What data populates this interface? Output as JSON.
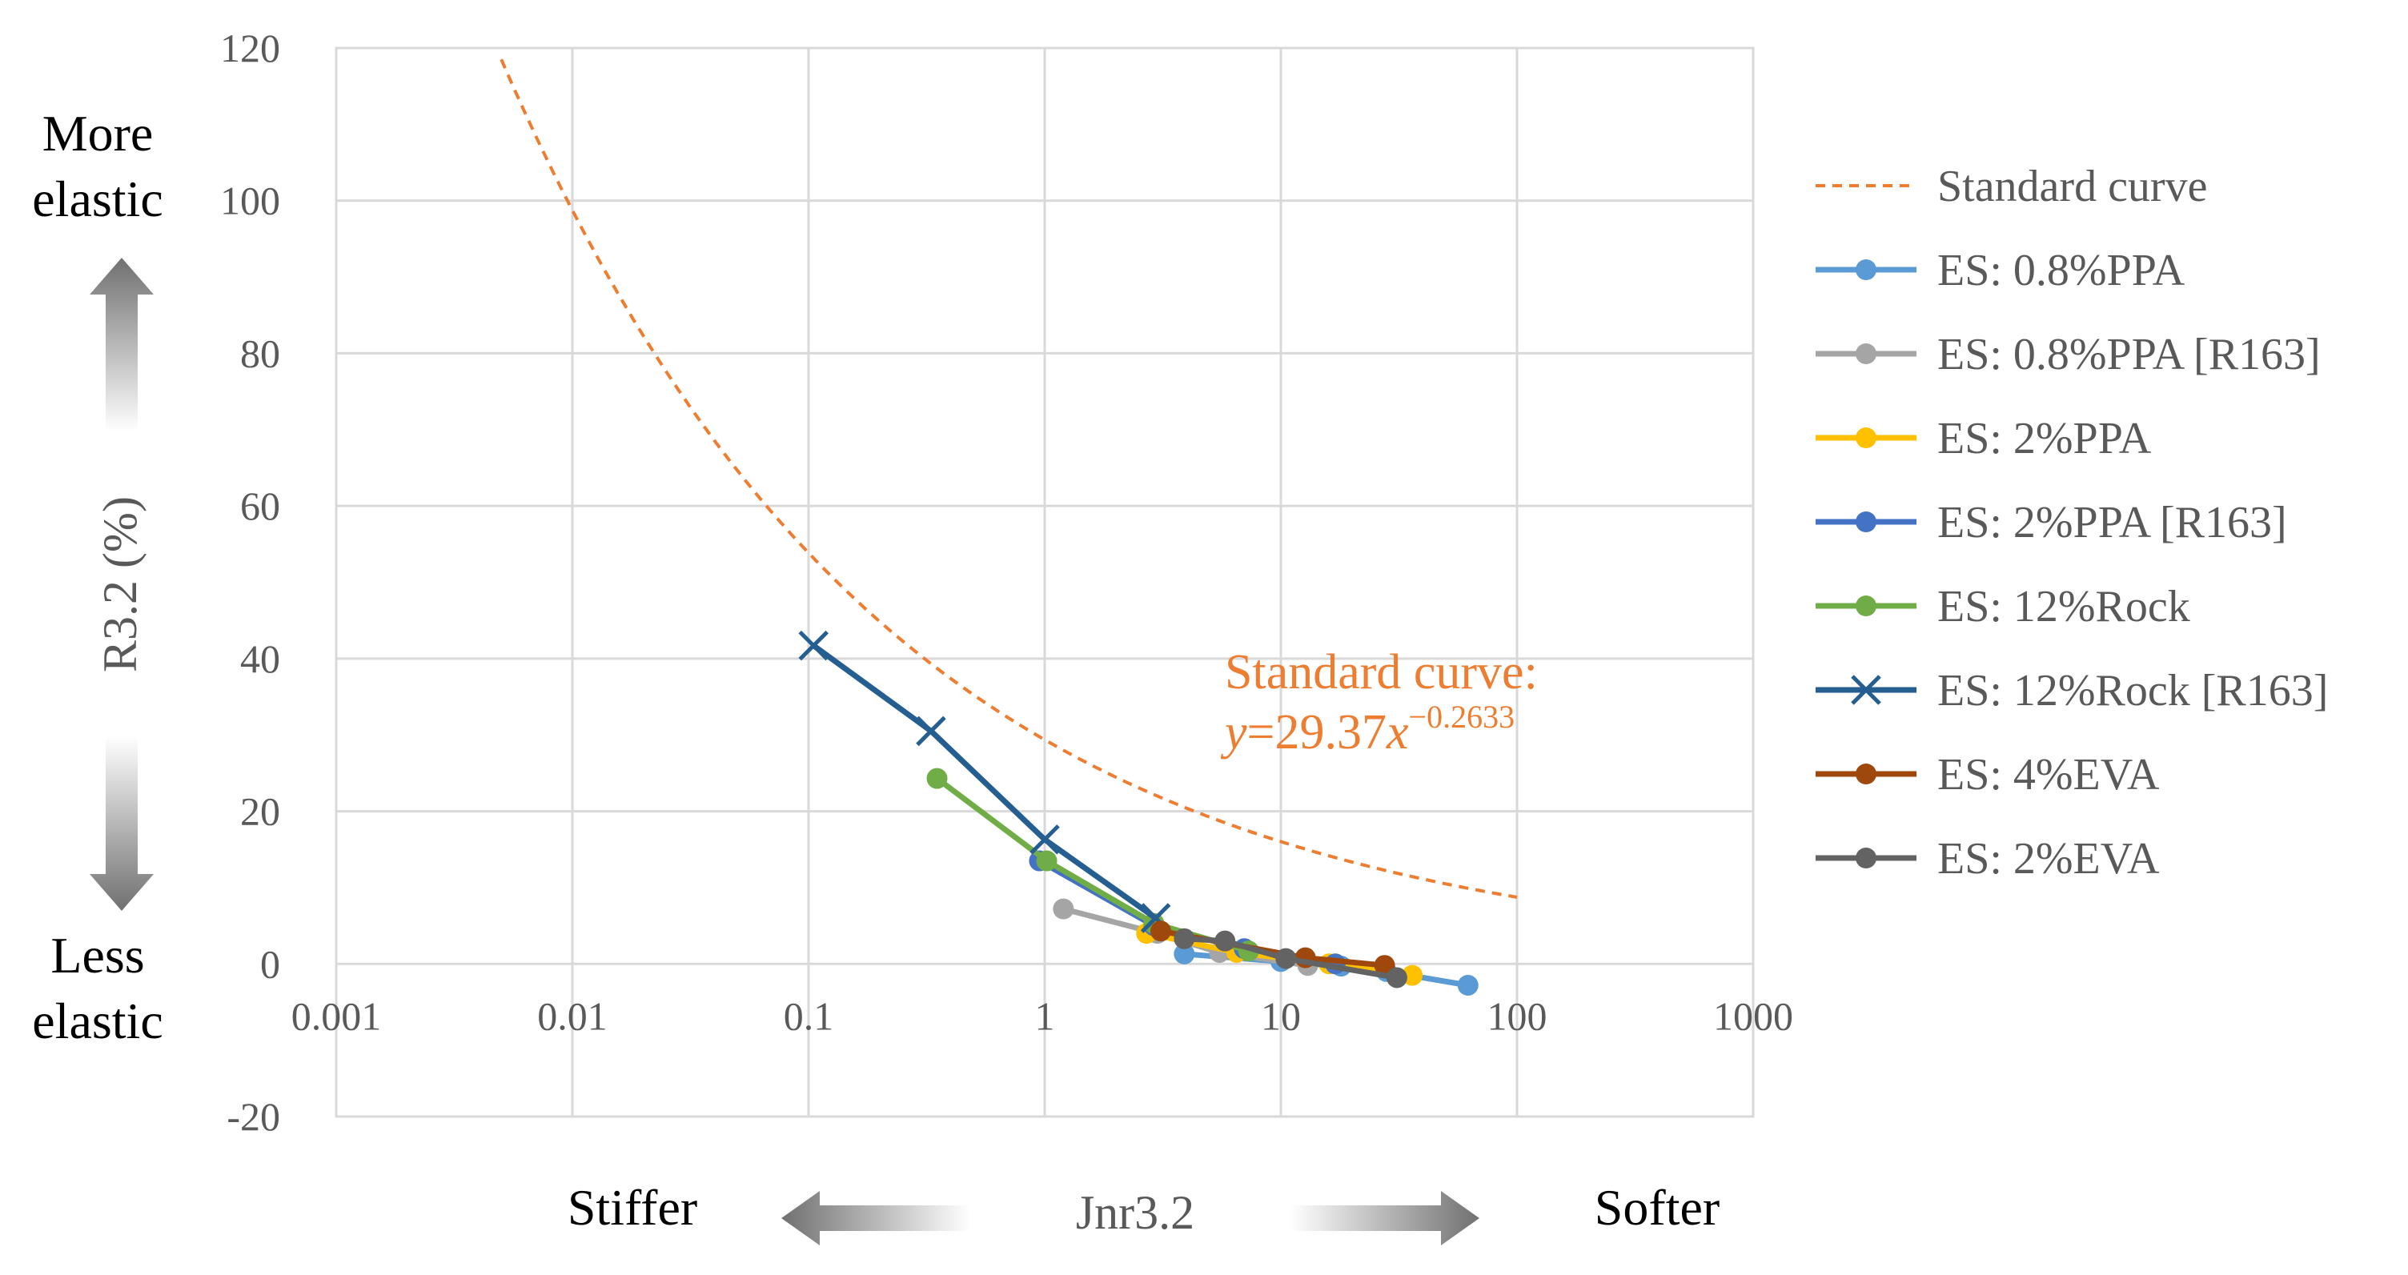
{
  "chart_data": {
    "type": "scatter",
    "x_scale": "log",
    "xlim": [
      0.001,
      1000
    ],
    "ylim": [
      -20,
      120
    ],
    "x_tick_labels": [
      "0.001",
      "0.01",
      "0.1",
      "1",
      "10",
      "100",
      "1000"
    ],
    "x_tick_values": [
      0.001,
      0.01,
      0.1,
      1,
      10,
      100,
      1000
    ],
    "y_tick_labels": [
      "-20",
      "0",
      "20",
      "40",
      "60",
      "80",
      "100",
      "120"
    ],
    "y_tick_values": [
      -20,
      0,
      20,
      40,
      60,
      80,
      100,
      120
    ],
    "xlabel": "Jnr3.2",
    "ylabel": "R3.2 (%)",
    "grid": true,
    "legend_position": "right",
    "side_labels": {
      "more_elastic": [
        "More",
        "elastic"
      ],
      "less_elastic": [
        "Less",
        "elastic"
      ],
      "stiffer": "Stiffer",
      "softer": "Softer"
    },
    "annotation": {
      "line1": "Standard curve:",
      "prefix": "y",
      "equals": "=29.37",
      "var": "x",
      "exponent": "−0.2633"
    },
    "standard_curve": {
      "name": "Standard curve",
      "coefficient": 29.37,
      "exponent": -0.2633,
      "x_range": [
        0.005,
        100
      ],
      "color": "#ED7D31"
    },
    "series": [
      {
        "name": "ES: 0.8%PPA",
        "color": "#5B9BD5",
        "marker": "circle",
        "x": [
          3.9,
          10,
          18,
          28,
          62
        ],
        "y": [
          1.3,
          0.3,
          -0.3,
          -1,
          -2.8
        ]
      },
      {
        "name": "ES: 0.8%PPA [R163]",
        "color": "#A5A5A5",
        "marker": "circle",
        "x": [
          1.2,
          3,
          5.5,
          13
        ],
        "y": [
          7.2,
          4,
          1.5,
          -0.2
        ]
      },
      {
        "name": "ES: 2%PPA",
        "color": "#FFC000",
        "marker": "circle",
        "x": [
          2.7,
          6.5,
          16,
          36
        ],
        "y": [
          4,
          1.5,
          0,
          -1.5
        ]
      },
      {
        "name": "ES: 2%PPA [R163]",
        "color": "#4472C4",
        "marker": "circle",
        "x": [
          0.95,
          2.9,
          7,
          17
        ],
        "y": [
          13.5,
          5,
          2,
          0
        ]
      },
      {
        "name": "ES: 12%Rock",
        "color": "#70AD47",
        "marker": "circle",
        "x": [
          0.35,
          1.02,
          2.9,
          7.3
        ],
        "y": [
          24.3,
          13.5,
          5.3,
          1.7
        ]
      },
      {
        "name": "ES: 12%Rock [R163]",
        "color": "#255E91",
        "marker": "x",
        "x": [
          0.105,
          0.33,
          1.0,
          2.95
        ],
        "y": [
          41.7,
          30.5,
          16.3,
          6
        ]
      },
      {
        "name": "ES: 4%EVA",
        "color": "#9E480E",
        "marker": "circle",
        "x": [
          3.1,
          12.7,
          27.5
        ],
        "y": [
          4.3,
          0.8,
          -0.2
        ]
      },
      {
        "name": "ES: 2%EVA",
        "color": "#636363",
        "marker": "circle",
        "x": [
          3.9,
          5.8,
          10.5,
          31
        ],
        "y": [
          3.3,
          3,
          0.7,
          -1.8
        ]
      }
    ]
  }
}
